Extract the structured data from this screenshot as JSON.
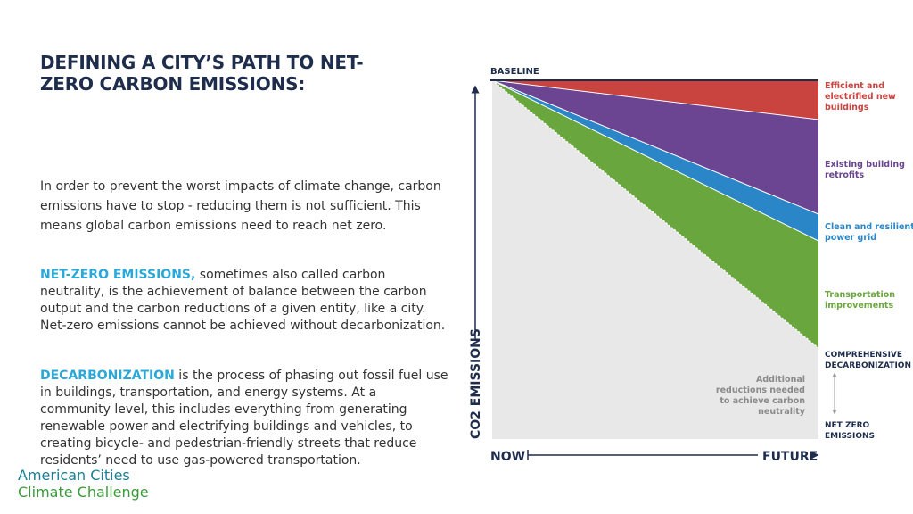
{
  "title": "DEFINING A CITY’S PATH TO NET-ZERO CARBON EMISSIONS:",
  "intro": "In order to prevent the worst impacts of climate change, carbon emissions have to stop - reducing them is not sufficient. This means global carbon emissions need to reach net zero.",
  "netzero": {
    "term": "NET-ZERO EMISSIONS,",
    "text": " sometimes also called carbon neutrality, is the achievement of balance between the carbon output and the carbon reductions of a given entity, like a city. Net-zero emissions cannot be achieved without decarbonization."
  },
  "decarbonization": {
    "term": "DECARBONIZATION",
    "text": " is the process of phasing out fossil fuel use in buildings, transportation, and energy systems. At a community level, this includes everything from generating renewable power and electrifying buildings and vehicles, to creating bicycle- and pedestrian-friendly streets that reduce residents’ need to use gas-powered transportation."
  },
  "logo": {
    "line1": "American Cities",
    "line2": "Climate Challenge"
  },
  "diagram": {
    "baseline": "BASELINE",
    "y_axis": "CO2 EMISSIONS",
    "x_start": "NOW",
    "x_end": "FUTURE",
    "wedges": [
      {
        "line1": "Efficient and",
        "line2": "electrified new",
        "line3": "buildings",
        "color": "#c9433f"
      },
      {
        "line1": "Existing building",
        "line2": "retrofits",
        "color": "#6b4492"
      },
      {
        "line1": "Clean and resilient",
        "line2": "power grid",
        "color": "#2b86c8"
      },
      {
        "line1": "Transportation",
        "line2": "improvements",
        "color": "#6aa63e"
      }
    ],
    "comprehensive": {
      "line1": "COMPREHENSIVE",
      "line2": "DECARBONIZATION"
    },
    "additional": {
      "line1": "Additional",
      "line2": "reductions needed",
      "line3": "to achieve carbon",
      "line4": "neutrality"
    },
    "net_zero": {
      "line1": "NET ZERO",
      "line2": "EMISSIONS"
    },
    "colors": {
      "text": "#1f2d4d",
      "wedge_label": "#7a8a92",
      "area": "#e8e8e8"
    }
  }
}
